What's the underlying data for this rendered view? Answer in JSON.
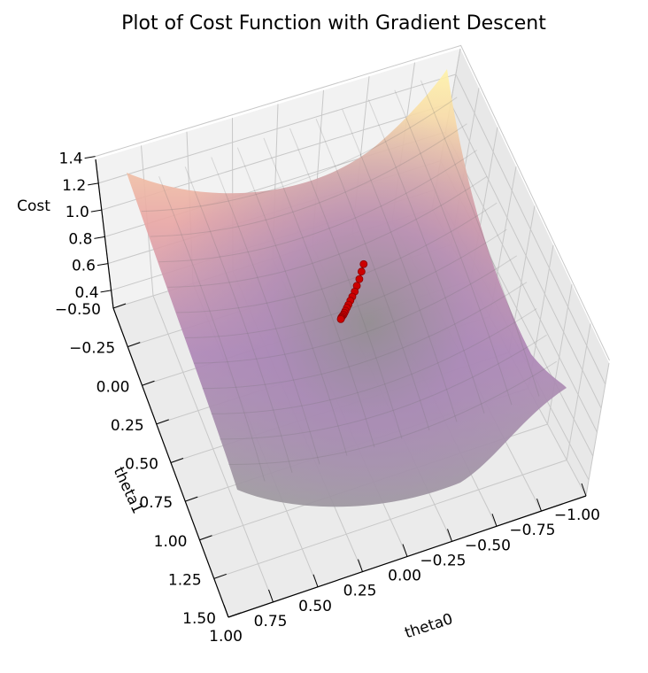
{
  "chart_data": {
    "type": "surface3d",
    "title": "Plot of Cost Function with Gradient Descent",
    "xlabel": "theta0",
    "ylabel": "theta1",
    "zlabel": "Cost",
    "xlim": [
      -1.0,
      1.0
    ],
    "ylim": [
      -0.5,
      1.5
    ],
    "zlim": [
      0.4,
      1.4
    ],
    "x_ticks": [
      "−1.00",
      "−0.75",
      "−0.50",
      "−0.25",
      "0.00",
      "0.25",
      "0.50",
      "0.75",
      "1.00"
    ],
    "y_ticks": [
      "−0.50",
      "−0.25",
      "0.00",
      "0.25",
      "0.50",
      "0.75",
      "1.00",
      "1.25",
      "1.50"
    ],
    "z_ticks": [
      "0.4",
      "0.6",
      "0.8",
      "1.0",
      "1.2",
      "1.4"
    ],
    "grid": true,
    "surface_colormap": "inferno (transparent)",
    "descent_color": "#cc0000",
    "descent_path": {
      "theta0": [
        -0.33,
        -0.3,
        -0.27,
        -0.24,
        -0.215,
        -0.19,
        -0.17,
        -0.15,
        -0.135,
        -0.12,
        -0.11,
        -0.1,
        -0.092,
        -0.085,
        -0.08,
        -0.076
      ],
      "theta1": [
        0.07,
        0.11,
        0.15,
        0.185,
        0.215,
        0.24,
        0.26,
        0.28,
        0.295,
        0.31,
        0.32,
        0.33,
        0.335,
        0.34,
        0.345,
        0.35
      ]
    }
  }
}
